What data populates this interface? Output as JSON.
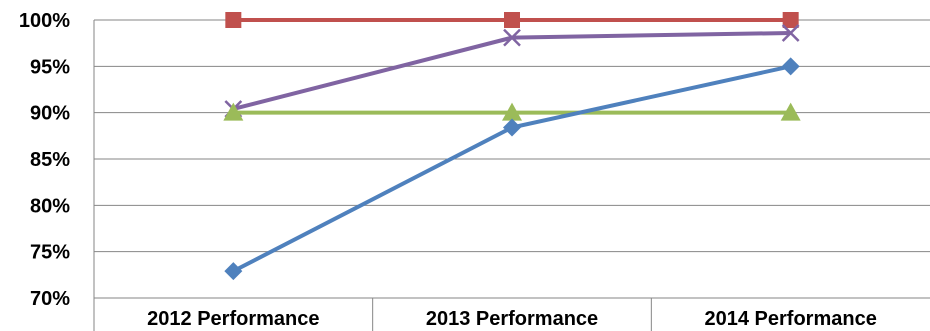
{
  "chart_data": {
    "type": "line",
    "categories": [
      "2012 Performance",
      "2013 Performance",
      "2014 Performance"
    ],
    "ylim": [
      0.7,
      1.0
    ],
    "yticks": [
      0.7,
      0.75,
      0.8,
      0.85,
      0.9,
      0.95,
      1.0
    ],
    "ytick_labels": [
      "70%",
      "75%",
      "80%",
      "85%",
      "90%",
      "95%",
      "100%"
    ],
    "grid": true,
    "legend": "none",
    "series": [
      {
        "values": [
          1.0,
          1.0,
          1.0
        ],
        "color": "#c0504d",
        "marker": "square"
      },
      {
        "values": [
          0.904,
          0.981,
          0.986
        ],
        "color": "#8064a2",
        "marker": "x"
      },
      {
        "values": [
          0.9,
          0.9,
          0.9
        ],
        "color": "#9bbb59",
        "marker": "triangle"
      },
      {
        "values": [
          0.729,
          0.884,
          0.95
        ],
        "color": "#4f81bd",
        "marker": "diamond"
      }
    ]
  }
}
